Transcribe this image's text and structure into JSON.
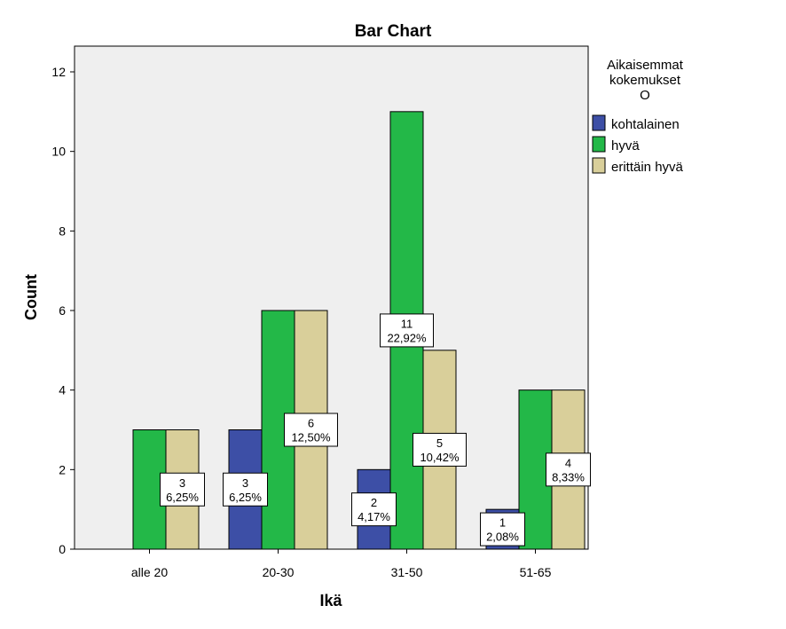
{
  "chart_data": {
    "type": "bar",
    "title": "Bar Chart",
    "xlabel": "Ikä",
    "ylabel": "Count",
    "categories": [
      "alle 20",
      "20-30",
      "31-50",
      "51-65"
    ],
    "ylim": [
      0,
      12.5
    ],
    "yticks": [
      0,
      2,
      4,
      6,
      8,
      10,
      12
    ],
    "grid": false,
    "legend": {
      "title": [
        "Aikaisemmat",
        "kokemukset",
        "O"
      ],
      "position": "right"
    },
    "series": [
      {
        "name": "kohtalainen",
        "color": "#3d4fa6",
        "values": [
          0,
          3,
          2,
          1
        ]
      },
      {
        "name": "hyvä",
        "color": "#23b848",
        "values": [
          3,
          6,
          11,
          4
        ]
      },
      {
        "name": "erittäin hyvä",
        "color": "#d9cf9a",
        "values": [
          3,
          6,
          5,
          4
        ]
      }
    ],
    "data_labels": [
      {
        "series": 0,
        "category": 1,
        "lines": [
          "3",
          "6,25%"
        ]
      },
      {
        "series": 0,
        "category": 2,
        "lines": [
          "2",
          "4,17%"
        ]
      },
      {
        "series": 0,
        "category": 3,
        "lines": [
          "1",
          "2,08%"
        ]
      },
      {
        "series": 1,
        "category": 2,
        "lines": [
          "11",
          "22,92%"
        ]
      },
      {
        "series": 2,
        "category": 0,
        "lines": [
          "3",
          "6,25%"
        ]
      },
      {
        "series": 2,
        "category": 1,
        "lines": [
          "6",
          "12,50%"
        ]
      },
      {
        "series": 2,
        "category": 2,
        "lines": [
          "5",
          "10,42%"
        ]
      },
      {
        "series": 2,
        "category": 3,
        "lines": [
          "4",
          "8,33%"
        ]
      }
    ],
    "plot_background": "#efefef"
  }
}
